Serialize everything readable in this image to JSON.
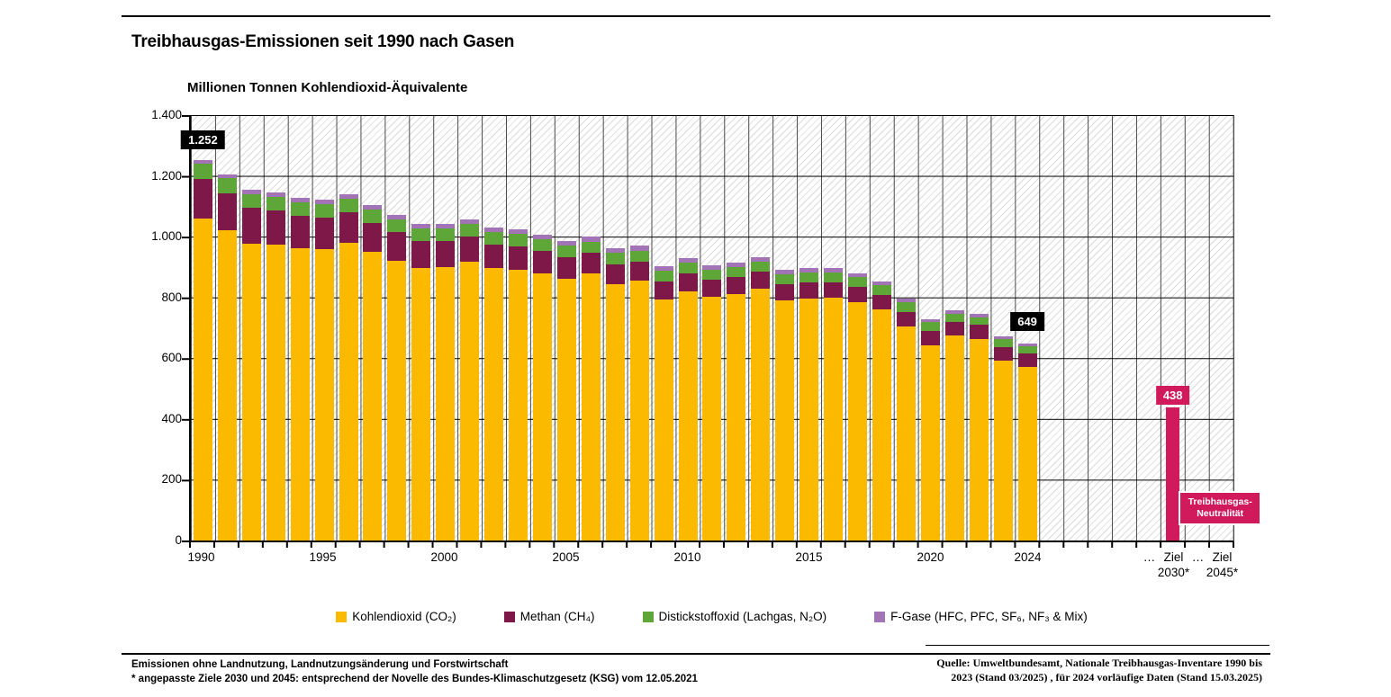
{
  "page": {
    "title": "Treibhausgas-Emissionen seit 1990 nach Gasen",
    "unit_label": "Millionen Tonnen Kohlendioxid-Äquivalente"
  },
  "footnotes": {
    "line1": "Emissionen ohne Landnutzung, Landnutzungsänderung und Forstwirtschaft",
    "line2": "* angepasste Ziele 2030 und 2045: entsprechend der Novelle des Bundes-Klimaschutzgesetz (KSG) vom 12.05.2021"
  },
  "source": {
    "line1": "Quelle: Umweltbundesamt, Nationale Treibhausgas-Inventare 1990 bis",
    "line2": "2023 (Stand 03/2025) , für 2024 vorläufige Daten (Stand 15.03.2025)"
  },
  "chart_data": {
    "type": "bar",
    "stacked": true,
    "title": "Treibhausgas-Emissionen seit 1990 nach Gasen",
    "ylabel": "Millionen Tonnen Kohlendioxid-Äquivalente",
    "ylim": [
      0,
      1400
    ],
    "grid": true,
    "hatched_background": true,
    "legend_position": "bottom",
    "grid_cells": 43,
    "ytick_labels": [
      "1.400",
      "1.200",
      "1.000",
      "800",
      "600",
      "400",
      "200",
      "0"
    ],
    "years": [
      1990,
      1991,
      1992,
      1993,
      1994,
      1995,
      1996,
      1997,
      1998,
      1999,
      2000,
      2001,
      2002,
      2003,
      2004,
      2005,
      2006,
      2007,
      2008,
      2009,
      2010,
      2011,
      2012,
      2013,
      2014,
      2015,
      2016,
      2017,
      2018,
      2019,
      2020,
      2021,
      2022,
      2023,
      2024
    ],
    "totals": [
      1252,
      1205,
      1155,
      1146,
      1128,
      1122,
      1140,
      1104,
      1072,
      1042,
      1043,
      1057,
      1031,
      1024,
      1007,
      987,
      1000,
      962,
      970,
      903,
      930,
      907,
      916,
      933,
      892,
      897,
      896,
      880,
      853,
      795,
      729,
      758,
      746,
      672,
      649
    ],
    "series": [
      {
        "key": "co2",
        "name": "Kohlendioxid (CO₂)",
        "color": "#FBB900",
        "values": [
          1059,
          1020,
          976,
          973,
          961,
          959,
          981,
          950,
          922,
          897,
          901,
          918,
          896,
          892,
          879,
          862,
          879,
          844,
          855,
          792,
          821,
          801,
          811,
          830,
          790,
          797,
          798,
          784,
          760,
          705,
          643,
          674,
          664,
          593,
          572
        ]
      },
      {
        "key": "ch4",
        "name": "Methan (CH₄)",
        "color": "#7E1849",
        "values": [
          130,
          124,
          118,
          113,
          108,
          104,
          100,
          96,
          92,
          88,
          85,
          82,
          79,
          76,
          73,
          70,
          67,
          64,
          62,
          60,
          58,
          56,
          55,
          54,
          53,
          52,
          51,
          50,
          49,
          48,
          47,
          46,
          45,
          44,
          43
        ]
      },
      {
        "key": "n2o",
        "name": "Distickstoffoxid (Lachgas, N₂O)",
        "color": "#5EA638",
        "values": [
          50,
          48,
          47,
          46,
          45,
          44,
          44,
          43,
          42,
          41,
          41,
          41,
          40,
          40,
          39,
          39,
          38,
          38,
          37,
          36,
          36,
          35,
          35,
          34,
          34,
          33,
          33,
          32,
          31,
          30,
          28,
          27,
          26,
          25,
          24
        ]
      },
      {
        "key": "f",
        "name": "F-Gase (HFC, PFC, SF₆, NF₃ & Mix)",
        "color": "#A273B5",
        "values": [
          13,
          13,
          14,
          14,
          14,
          15,
          15,
          15,
          16,
          16,
          16,
          16,
          16,
          16,
          16,
          16,
          16,
          16,
          16,
          15,
          15,
          15,
          15,
          15,
          15,
          15,
          14,
          14,
          13,
          12,
          11,
          11,
          11,
          10,
          10
        ]
      }
    ],
    "target_bars": [
      {
        "name": "ziel-2030",
        "cell": 40,
        "value": 438,
        "color": "#D01A5B"
      },
      {
        "name": "ziel-2045",
        "cell": 42,
        "value": 0,
        "color": "#D01A5B"
      }
    ],
    "xtick_labels": [
      {
        "cell": 0,
        "line1": "1990"
      },
      {
        "cell": 5,
        "line1": "1995"
      },
      {
        "cell": 10,
        "line1": "2000"
      },
      {
        "cell": 15,
        "line1": "2005"
      },
      {
        "cell": 20,
        "line1": "2010"
      },
      {
        "cell": 25,
        "line1": "2015"
      },
      {
        "cell": 30,
        "line1": "2020"
      },
      {
        "cell": 34,
        "line1": "2024"
      },
      {
        "cell": 39,
        "line1": "…"
      },
      {
        "cell": 40,
        "line1": "Ziel",
        "line2": "2030*"
      },
      {
        "cell": 41,
        "line1": "…"
      },
      {
        "cell": 42,
        "line1": "Ziel",
        "line2": "2045*"
      }
    ],
    "annotations": [
      {
        "name": "label-1990-total",
        "text": "1.252",
        "cell_center": 0.5,
        "bottom_value": 1288,
        "style": "black"
      },
      {
        "name": "label-2024-total",
        "text": "649",
        "cell_center": 34.5,
        "bottom_value": 690,
        "style": "black"
      },
      {
        "name": "label-ziel-2030",
        "text": "438",
        "cell_center": 40.5,
        "bottom_value": 446,
        "style": "pink"
      }
    ],
    "neutrality_box": {
      "line1": "Treibhausgas-",
      "line2": "Neutralität",
      "color": "#D01A5B",
      "left_cell": 40.75,
      "width_cells": 3.4,
      "bottom_value": 50
    },
    "colors": {
      "co2": "#FBB900",
      "ch4": "#7E1849",
      "n2o": "#5EA638",
      "f_gase": "#A273B5",
      "target_pink": "#D01A5B",
      "label_black": "#000000",
      "gridline": "#000000",
      "vertical_gridline": "#4a4a4a",
      "hatch": "#dadada"
    }
  }
}
